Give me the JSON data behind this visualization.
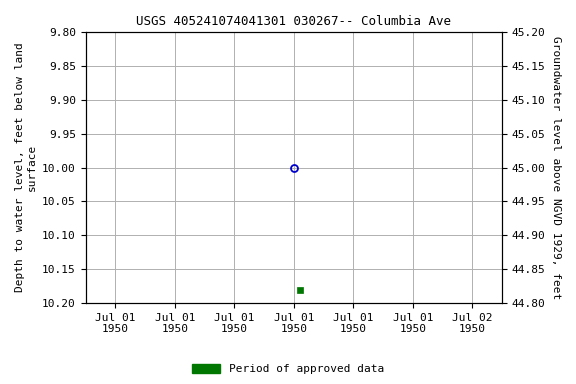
{
  "title": "USGS 405241074041301 030267-- Columbia Ave",
  "tick_labels_x": [
    "Jul 01\n1950",
    "Jul 01\n1950",
    "Jul 01\n1950",
    "Jul 01\n1950",
    "Jul 01\n1950",
    "Jul 01\n1950",
    "Jul 02\n1950"
  ],
  "ylabel_left": "Depth to water level, feet below land\nsurface",
  "ylabel_right": "Groundwater level above NGVD 1929, feet",
  "ylim_left": [
    9.8,
    10.2
  ],
  "ylim_right": [
    44.8,
    45.2
  ],
  "yticks_left": [
    9.8,
    9.85,
    9.9,
    9.95,
    10.0,
    10.05,
    10.1,
    10.15,
    10.2
  ],
  "yticks_right": [
    44.8,
    44.85,
    44.9,
    44.95,
    45.0,
    45.05,
    45.1,
    45.15,
    45.2
  ],
  "point_open_x": 3.0,
  "point_open_y": 10.0,
  "point_filled_x": 3.1,
  "point_filled_y": 10.18,
  "open_color": "#0000cc",
  "filled_color": "#007700",
  "background_color": "#ffffff",
  "grid_color": "#b0b0b0",
  "title_fontsize": 9,
  "axis_label_fontsize": 8,
  "tick_fontsize": 8,
  "legend_label": "Period of approved data",
  "legend_color": "#007700",
  "x_positions": [
    0,
    1,
    2,
    3,
    4,
    5,
    6
  ],
  "xlim": [
    -0.5,
    6.5
  ]
}
